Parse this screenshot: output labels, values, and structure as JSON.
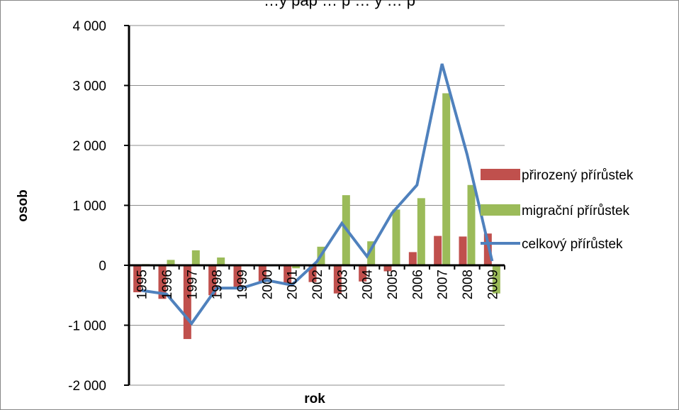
{
  "chart_data": {
    "type": "bar",
    "title_partial": "…y pap … p … y … p",
    "xlabel": "rok",
    "ylabel": "osob",
    "ylim": [
      -2000,
      4000
    ],
    "yticks": [
      4000,
      3000,
      2000,
      1000,
      0,
      -1000,
      -2000
    ],
    "ytick_labels": [
      "4 000",
      "3 000",
      "2 000",
      "1 000",
      "0",
      "-1 000",
      "-2 000"
    ],
    "grid": true,
    "legend_position": "right",
    "categories": [
      "1995",
      "1996",
      "1997",
      "1998",
      "1999",
      "2000",
      "2001",
      "2002",
      "2003",
      "2004",
      "2005",
      "2006",
      "2007",
      "2008",
      "2009"
    ],
    "series": [
      {
        "name": "přirozený přírůstek",
        "kind": "bar",
        "color": "#C0504D",
        "values": [
          -450,
          -560,
          -1230,
          -500,
          -380,
          -280,
          -300,
          -280,
          -470,
          -270,
          -100,
          220,
          490,
          480,
          530
        ]
      },
      {
        "name": "migrační přírůstek",
        "kind": "bar",
        "color": "#9BBB59",
        "values": [
          20,
          90,
          250,
          130,
          0,
          0,
          -50,
          310,
          1170,
          400,
          930,
          1120,
          2870,
          1340,
          -470
        ]
      },
      {
        "name": "celkový přírůstek",
        "kind": "line",
        "color": "#4F81BD",
        "values": [
          -420,
          -480,
          -970,
          -380,
          -380,
          -250,
          -330,
          60,
          700,
          150,
          870,
          1340,
          3360,
          1850,
          70
        ]
      }
    ]
  }
}
